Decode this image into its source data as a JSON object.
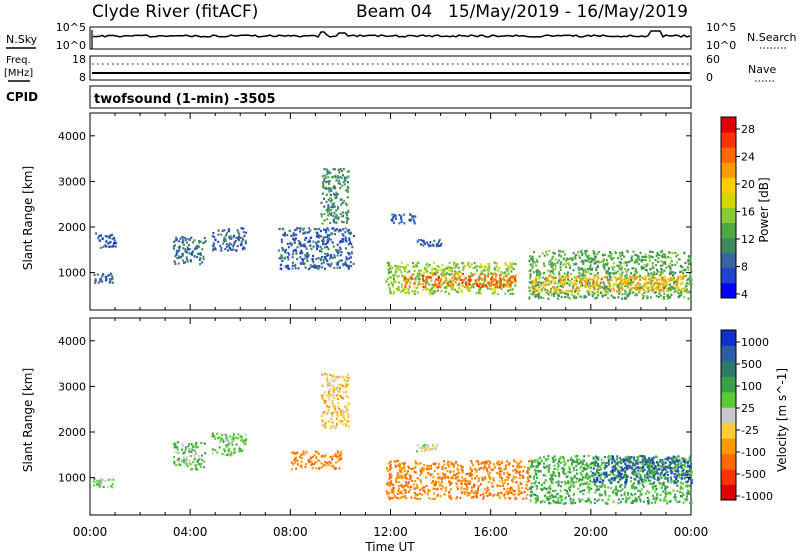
{
  "header": {
    "station": "Clyde River (fitACF)",
    "beam": "Beam 04",
    "date_range": "15/May/2019 - 16/May/2019"
  },
  "noise_panel": {
    "left_label": "N.Sky",
    "left_ticks": [
      "10^5",
      "10^0"
    ],
    "right_label": "N.Search",
    "right_ticks": [
      "10^5",
      "10^0"
    ]
  },
  "freq_panel": {
    "left_label_1": "Freq.",
    "left_label_2": "[MHz]",
    "left_ticks": [
      "18",
      "8"
    ],
    "right_label": "Nave",
    "right_ticks": [
      "60",
      "0"
    ]
  },
  "cpid_panel": {
    "label": "CPID",
    "text": "twofsound (1-min) -3505"
  },
  "colors": {
    "frame": "#000000",
    "background": "#ffffff"
  },
  "chart_data": [
    {
      "type": "heatmap",
      "name": "power-panel",
      "title": "",
      "xlabel": "",
      "ylabel": "Slant Range [km]",
      "x_range_hours": [
        0,
        24
      ],
      "ylim": [
        180,
        4500
      ],
      "yticks": [
        "4000",
        "3000",
        "2000",
        "1000"
      ],
      "colorbar": {
        "label": "Power [dB]",
        "tick_labels": [
          "28",
          "24",
          "20",
          "16",
          "12",
          "8",
          "4"
        ],
        "range": [
          0,
          30
        ],
        "colors": [
          "#0000ff",
          "#2244cc",
          "#3a62a6",
          "#3d8a5a",
          "#4caa40",
          "#88cc33",
          "#d6d600",
          "#ffcc00",
          "#ff9900",
          "#ff6a00",
          "#ff3300",
          "#e00000"
        ]
      },
      "regions": [
        {
          "t": [
            0.1,
            0.9
          ],
          "r": [
            800,
            1000
          ],
          "v": 6
        },
        {
          "t": [
            0.2,
            1.0
          ],
          "r": [
            1550,
            1900
          ],
          "v": 5
        },
        {
          "t": [
            3.3,
            4.6
          ],
          "r": [
            1200,
            1800
          ],
          "v": 7
        },
        {
          "t": [
            4.8,
            6.2
          ],
          "r": [
            1500,
            2000
          ],
          "v": 6
        },
        {
          "t": [
            7.5,
            10.5
          ],
          "r": [
            1100,
            2000
          ],
          "v": 6
        },
        {
          "t": [
            9.2,
            10.3
          ],
          "r": [
            2100,
            3300
          ],
          "v": 9
        },
        {
          "t": [
            11.8,
            17.0
          ],
          "r": [
            550,
            1250
          ],
          "v": 14
        },
        {
          "t": [
            12.5,
            17.0
          ],
          "r": [
            700,
            1000
          ],
          "v": 24
        },
        {
          "t": [
            13.0,
            14.0
          ],
          "r": [
            1600,
            1750
          ],
          "v": 6
        },
        {
          "t": [
            12.0,
            13.0
          ],
          "r": [
            2100,
            2300
          ],
          "v": 6
        },
        {
          "t": [
            17.5,
            24.0
          ],
          "r": [
            450,
            1500
          ],
          "v": 11
        },
        {
          "t": [
            17.6,
            23.8
          ],
          "r": [
            600,
            950
          ],
          "v": 20
        }
      ]
    },
    {
      "type": "heatmap",
      "name": "velocity-panel",
      "title": "",
      "xlabel": "Time UT",
      "ylabel": "Slant Range [km]",
      "x_range_hours": [
        0,
        24
      ],
      "x_tick_labels": [
        "00:00",
        "04:00",
        "08:00",
        "12:00",
        "16:00",
        "20:00",
        "00:00"
      ],
      "ylim": [
        180,
        4500
      ],
      "yticks": [
        "4000",
        "3000",
        "2000",
        "1000"
      ],
      "colorbar": {
        "label": "Velocity [m s^-1]",
        "tick_labels": [
          "1000",
          "500",
          "100",
          "25",
          "-25",
          "-100",
          "-500",
          "-1000"
        ],
        "range": [
          -1000,
          1000
        ],
        "colors": [
          "#e00000",
          "#ff3300",
          "#ff6a00",
          "#ff9900",
          "#ffcc33",
          "#c8c8c8",
          "#55cc33",
          "#3aa04a",
          "#2d7a66",
          "#2a5fa8",
          "#1030cc"
        ]
      },
      "regions": [
        {
          "t": [
            0.1,
            0.9
          ],
          "r": [
            800,
            1000
          ],
          "v": 150
        },
        {
          "t": [
            3.3,
            4.6
          ],
          "r": [
            1200,
            1800
          ],
          "v": 200
        },
        {
          "t": [
            4.8,
            6.2
          ],
          "r": [
            1500,
            2000
          ],
          "v": 180
        },
        {
          "t": [
            8.0,
            10.0
          ],
          "r": [
            1200,
            1600
          ],
          "v": -450
        },
        {
          "t": [
            9.2,
            10.3
          ],
          "r": [
            2100,
            3300
          ],
          "v": -200
        },
        {
          "t": [
            11.8,
            17.5
          ],
          "r": [
            550,
            1400
          ],
          "v": -450
        },
        {
          "t": [
            13.0,
            14.0
          ],
          "r": [
            1600,
            1750
          ],
          "v": 0
        },
        {
          "t": [
            17.5,
            24.0
          ],
          "r": [
            450,
            1500
          ],
          "v": 300
        },
        {
          "t": [
            20.0,
            24.0
          ],
          "r": [
            900,
            1500
          ],
          "v": 700
        }
      ]
    }
  ]
}
